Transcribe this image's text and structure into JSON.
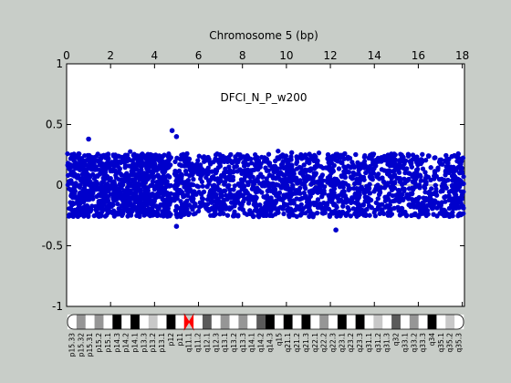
{
  "chart_data": {
    "type": "scatter",
    "title": "Chromosome 5 (bp)",
    "annotation": "DFCI_N_P_w200",
    "xlim": [
      0,
      18.1
    ],
    "ylim": [
      -1,
      1
    ],
    "x_ticks": [
      0,
      2,
      4,
      6,
      8,
      10,
      12,
      14,
      16,
      18
    ],
    "y_ticks": [
      {
        "value": 1,
        "label": "1"
      },
      {
        "value": 0.5,
        "label": "0.5"
      },
      {
        "value": 0,
        "label": "0"
      },
      {
        "value": -0.5,
        "label": "-0.5"
      },
      {
        "value": -1,
        "label": "-1"
      }
    ],
    "x_tick_scale": 10000000,
    "point_color": "#0000cc",
    "reference_line": {
      "y": 0,
      "color": "#888888"
    },
    "series": [
      {
        "segments": [
          {
            "x_start": 0.0,
            "x_end": 4.75,
            "y_mean": 0.0,
            "y_spread": 0.26
          },
          {
            "x_start": 4.9,
            "x_end": 18.1,
            "y_mean": 0.0,
            "y_spread": 0.26
          }
        ],
        "outliers": [
          {
            "x": 4.8,
            "y": 0.45
          },
          {
            "x": 1.0,
            "y": 0.38
          },
          {
            "x": 5.0,
            "y": 0.4
          },
          {
            "x": 12.25,
            "y": -0.37
          },
          {
            "x": 5.0,
            "y": -0.34
          }
        ]
      }
    ],
    "ideogram": {
      "centromere_color": "#ff0000",
      "bands": [
        {
          "label": "p15.33",
          "stain": "gneg"
        },
        {
          "label": "p15.32",
          "stain": "gpos50"
        },
        {
          "label": "p15.31",
          "stain": "gneg"
        },
        {
          "label": "p15.2",
          "stain": "gpos50"
        },
        {
          "label": "p15.1",
          "stain": "gneg"
        },
        {
          "label": "p14.3",
          "stain": "gpos100"
        },
        {
          "label": "p14.2",
          "stain": "gneg"
        },
        {
          "label": "p14.1",
          "stain": "gpos100"
        },
        {
          "label": "p13.3",
          "stain": "gneg"
        },
        {
          "label": "p13.2",
          "stain": "gpos25"
        },
        {
          "label": "p13.1",
          "stain": "gneg"
        },
        {
          "label": "p12",
          "stain": "gpos100"
        },
        {
          "label": "p11",
          "stain": "gneg"
        },
        {
          "label": "q11.1",
          "stain": "acen"
        },
        {
          "label": "q11.2",
          "stain": "gneg"
        },
        {
          "label": "q12.1",
          "stain": "gpos75"
        },
        {
          "label": "q12.3",
          "stain": "gneg"
        },
        {
          "label": "q13.1",
          "stain": "gpos50"
        },
        {
          "label": "q13.2",
          "stain": "gneg"
        },
        {
          "label": "q13.3",
          "stain": "gpos50"
        },
        {
          "label": "q14.1",
          "stain": "gneg"
        },
        {
          "label": "q14.2",
          "stain": "gpos75"
        },
        {
          "label": "q14.3",
          "stain": "gpos100"
        },
        {
          "label": "q15",
          "stain": "gneg"
        },
        {
          "label": "q21.1",
          "stain": "gpos100"
        },
        {
          "label": "q21.2",
          "stain": "gneg"
        },
        {
          "label": "q21.3",
          "stain": "gpos100"
        },
        {
          "label": "q22.1",
          "stain": "gneg"
        },
        {
          "label": "q22.2",
          "stain": "gpos50"
        },
        {
          "label": "q22.3",
          "stain": "gneg"
        },
        {
          "label": "q23.1",
          "stain": "gpos100"
        },
        {
          "label": "q23.2",
          "stain": "gneg"
        },
        {
          "label": "q23.3",
          "stain": "gpos100"
        },
        {
          "label": "q31.1",
          "stain": "gneg"
        },
        {
          "label": "q31.2",
          "stain": "gpos25"
        },
        {
          "label": "q31.3",
          "stain": "gneg"
        },
        {
          "label": "q32",
          "stain": "gpos75"
        },
        {
          "label": "q33.1",
          "stain": "gneg"
        },
        {
          "label": "q33.2",
          "stain": "gpos50"
        },
        {
          "label": "q33.3",
          "stain": "gneg"
        },
        {
          "label": "q34",
          "stain": "gpos100"
        },
        {
          "label": "q35.1",
          "stain": "gneg"
        },
        {
          "label": "q35.2",
          "stain": "gpos25"
        },
        {
          "label": "q35.3",
          "stain": "gneg"
        }
      ]
    }
  }
}
